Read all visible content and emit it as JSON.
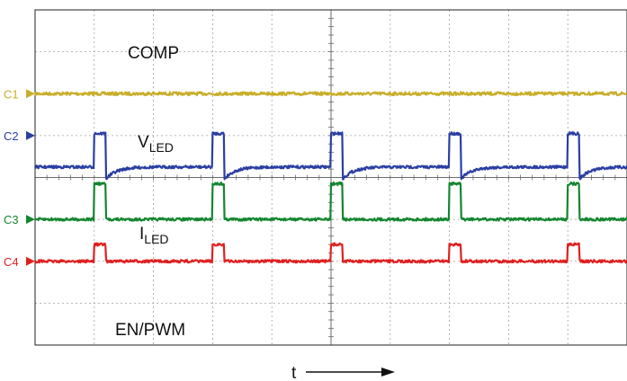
{
  "chart_data": {
    "type": "line",
    "title": "",
    "xlabel": "t",
    "ylabel": "",
    "grid": true,
    "grid_divisions": {
      "x": 10,
      "y": 8
    },
    "signal_period_div": 2.0,
    "pulse_width_div": 0.2,
    "pulse_starts_div": [
      1.0,
      3.0,
      5.0,
      7.0,
      9.0
    ],
    "series": [
      {
        "key": "comp",
        "name": "COMP",
        "label_main": "COMP",
        "label_sub": "",
        "channel_marker": "C1",
        "color": "#c9ae2a",
        "marker_color": "#c9ae2a",
        "ground_div": 2.0,
        "level_div": 2.0,
        "pulse_level_div": 2.0,
        "shape": "dc"
      },
      {
        "key": "vled",
        "name": "VLED",
        "label_main": "V",
        "label_sub": "LED",
        "channel_marker": "C2",
        "color": "#2a3fa3",
        "marker_color": "#2a3fa3",
        "ground_div": 3.0,
        "level_div": 3.75,
        "pulse_level_div": 2.95,
        "shape": "dip_recover"
      },
      {
        "key": "iled",
        "name": "ILED",
        "label_main": "I",
        "label_sub": "LED",
        "channel_marker": "C3",
        "color": "#14862f",
        "marker_color": "#14862f",
        "ground_div": 5.0,
        "level_div": 5.0,
        "pulse_level_div": 4.15,
        "shape": "pulse"
      },
      {
        "key": "enpwm",
        "name": "EN/PWM",
        "label_main": "EN/PWM",
        "label_sub": "",
        "channel_marker": "C4",
        "color": "#e02020",
        "marker_color": "#e02020",
        "ground_div": 6.0,
        "level_div": 6.0,
        "pulse_level_div": 5.6,
        "shape": "pulse"
      }
    ]
  }
}
